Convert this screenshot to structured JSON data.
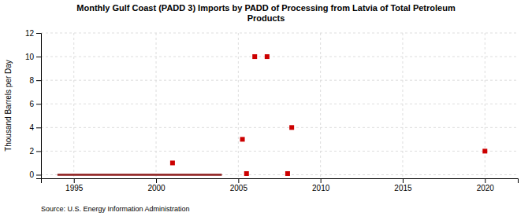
{
  "chart_data": {
    "type": "line",
    "title": "Monthly Gulf Coast (PADD 3) Imports by PADD of Processing from Latvia of Total Petroleum\nProducts",
    "ylabel": "Thousand Barrels per Day",
    "source": "Source: U.S. Energy Information Administration",
    "xlim": [
      1993,
      2022
    ],
    "ylim": [
      -0.3,
      12
    ],
    "xticks": [
      1995,
      2000,
      2005,
      2010,
      2015,
      2020
    ],
    "yticks": [
      0,
      2,
      4,
      6,
      8,
      10,
      12
    ],
    "grid": true,
    "series": [
      {
        "type": "line",
        "color": "#8b1a1a",
        "line_style": "solid",
        "x": [
          1994.0,
          2004.0
        ],
        "values": [
          0,
          0
        ]
      },
      {
        "type": "scatter",
        "color": "#cc0000",
        "marker": "square",
        "x": [
          2001.0,
          2005.25,
          2006.0,
          2006.75,
          2005.5,
          2008.0,
          2008.25,
          2020.0
        ],
        "values": [
          1,
          3,
          10,
          10,
          0.1,
          0.1,
          4,
          2
        ]
      }
    ]
  }
}
